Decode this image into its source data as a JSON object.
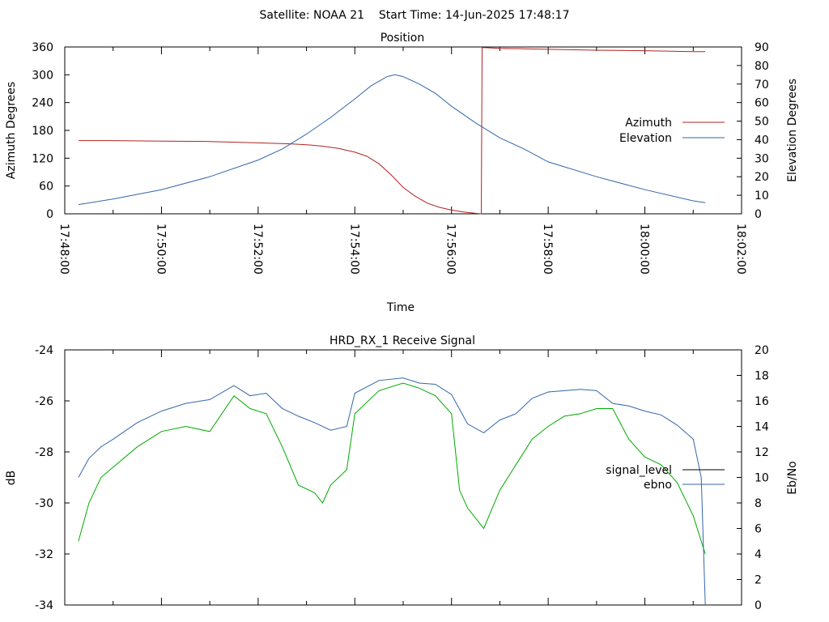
{
  "page_title": "Satellite: NOAA 21    Start Time: 14-Jun-2025 17:48:17",
  "colors": {
    "azimuth": "#b22222",
    "elevation": "#3366aa",
    "signal_level": "#000000",
    "ebno": "#3366aa",
    "signal_level_trace": "#00aa00"
  },
  "chart_data": [
    {
      "type": "line",
      "title": "Position",
      "xlabel": "Time",
      "ylabel": "Azimuth Degrees",
      "y2label": "Elevation Degrees",
      "xlim": [
        "17:48:00",
        "18:02:00"
      ],
      "ylim": [
        0,
        360
      ],
      "y2lim": [
        0,
        90
      ],
      "x_ticks": [
        "17:48:00",
        "17:50:00",
        "17:52:00",
        "17:54:00",
        "17:56:00",
        "17:58:00",
        "18:00:00",
        "18:02:00"
      ],
      "y_ticks": [
        "0",
        "60",
        "120",
        "180",
        "240",
        "300",
        "360"
      ],
      "y2_ticks": [
        "0",
        "10",
        "20",
        "30",
        "40",
        "50",
        "60",
        "70",
        "80",
        "90"
      ],
      "legend_position": "right",
      "series": [
        {
          "name": "Azimuth",
          "axis": "y",
          "x": [
            "17:48:17",
            "17:49:00",
            "17:50:00",
            "17:51:00",
            "17:52:00",
            "17:52:40",
            "17:53:00",
            "17:53:20",
            "17:53:40",
            "17:54:00",
            "17:54:15",
            "17:54:30",
            "17:54:45",
            "17:55:00",
            "17:55:15",
            "17:55:30",
            "17:55:45",
            "17:56:00",
            "17:56:15",
            "17:56:30",
            "17:56:37",
            "17:56:38",
            "17:57:00",
            "17:58:00",
            "17:59:00",
            "18:00:00",
            "18:01:00",
            "18:01:15"
          ],
          "y": [
            158,
            158,
            157,
            156,
            153,
            151,
            149,
            146,
            141,
            133,
            124,
            108,
            84,
            57,
            38,
            23,
            14,
            8,
            4,
            1,
            0,
            359,
            357,
            355,
            353,
            352,
            350,
            350
          ]
        },
        {
          "name": "Elevation",
          "axis": "y2",
          "x": [
            "17:48:17",
            "17:49:00",
            "17:50:00",
            "17:51:00",
            "17:52:00",
            "17:52:30",
            "17:53:00",
            "17:53:30",
            "17:54:00",
            "17:54:20",
            "17:54:40",
            "17:54:50",
            "17:55:00",
            "17:55:20",
            "17:55:40",
            "17:56:00",
            "17:56:30",
            "17:57:00",
            "17:57:30",
            "17:58:00",
            "17:59:00",
            "18:00:00",
            "18:01:00",
            "18:01:15"
          ],
          "y": [
            5,
            8,
            13,
            20,
            29,
            35,
            43,
            52,
            62,
            69,
            74,
            75,
            74,
            70,
            65,
            58,
            49,
            41,
            35,
            28,
            20,
            13,
            7,
            6
          ]
        }
      ]
    },
    {
      "type": "line",
      "title": "HRD_RX_1 Receive Signal",
      "xlabel": "",
      "ylabel": "dB",
      "y2label": "Eb/No",
      "xlim": [
        "17:48:00",
        "18:02:00"
      ],
      "ylim": [
        -34,
        -24
      ],
      "y2lim": [
        0,
        20
      ],
      "y_ticks": [
        "-34",
        "-32",
        "-30",
        "-28",
        "-26",
        "-24"
      ],
      "y2_ticks": [
        "0",
        "2",
        "4",
        "6",
        "8",
        "10",
        "12",
        "14",
        "16",
        "18",
        "20"
      ],
      "legend_position": "right",
      "series": [
        {
          "name": "signal_level",
          "axis": "y",
          "x": [
            "17:48:17",
            "17:48:30",
            "17:48:45",
            "17:49:00",
            "17:49:30",
            "17:50:00",
            "17:50:30",
            "17:51:00",
            "17:51:30",
            "17:51:50",
            "17:52:10",
            "17:52:30",
            "17:52:50",
            "17:53:10",
            "17:53:20",
            "17:53:30",
            "17:53:50",
            "17:54:00",
            "17:54:30",
            "17:55:00",
            "17:55:20",
            "17:55:40",
            "17:56:00",
            "17:56:10",
            "17:56:20",
            "17:56:40",
            "17:57:00",
            "17:57:20",
            "17:57:40",
            "17:58:00",
            "17:58:20",
            "17:58:40",
            "17:59:00",
            "17:59:20",
            "17:59:40",
            "18:00:00",
            "18:00:20",
            "18:00:40",
            "18:01:00",
            "18:01:15"
          ],
          "y": [
            -31.5,
            -30.0,
            -29.0,
            -28.6,
            -27.8,
            -27.2,
            -27.0,
            -27.2,
            -25.8,
            -26.3,
            -26.5,
            -27.8,
            -29.3,
            -29.6,
            -30.0,
            -29.3,
            -28.7,
            -26.5,
            -25.6,
            -25.3,
            -25.5,
            -25.8,
            -26.5,
            -29.5,
            -30.2,
            -31.0,
            -29.5,
            -28.5,
            -27.5,
            -27.0,
            -26.6,
            -26.5,
            -26.3,
            -26.3,
            -27.5,
            -28.2,
            -28.5,
            -29.2,
            -30.5,
            -32.0
          ]
        },
        {
          "name": "ebno",
          "axis": "y2",
          "x": [
            "17:48:17",
            "17:48:30",
            "17:48:45",
            "17:49:00",
            "17:49:30",
            "17:50:00",
            "17:50:30",
            "17:51:00",
            "17:51:30",
            "17:51:50",
            "17:52:10",
            "17:52:30",
            "17:52:50",
            "17:53:10",
            "17:53:30",
            "17:53:50",
            "17:54:00",
            "17:54:30",
            "17:55:00",
            "17:55:20",
            "17:55:40",
            "17:56:00",
            "17:56:20",
            "17:56:40",
            "17:57:00",
            "17:57:20",
            "17:57:40",
            "17:58:00",
            "17:58:20",
            "17:58:40",
            "17:59:00",
            "17:59:20",
            "17:59:40",
            "18:00:00",
            "18:00:20",
            "18:00:40",
            "18:01:00",
            "18:01:10",
            "18:01:15"
          ],
          "y": [
            10.0,
            11.5,
            12.4,
            13.0,
            14.3,
            15.2,
            15.8,
            16.1,
            17.2,
            16.4,
            16.6,
            15.4,
            14.8,
            14.3,
            13.7,
            14.0,
            16.6,
            17.6,
            17.8,
            17.4,
            17.3,
            16.5,
            14.2,
            13.5,
            14.5,
            15.0,
            16.2,
            16.7,
            16.8,
            16.9,
            16.8,
            15.8,
            15.6,
            15.2,
            14.9,
            14.1,
            13.0,
            10.0,
            0.0
          ]
        }
      ]
    }
  ]
}
